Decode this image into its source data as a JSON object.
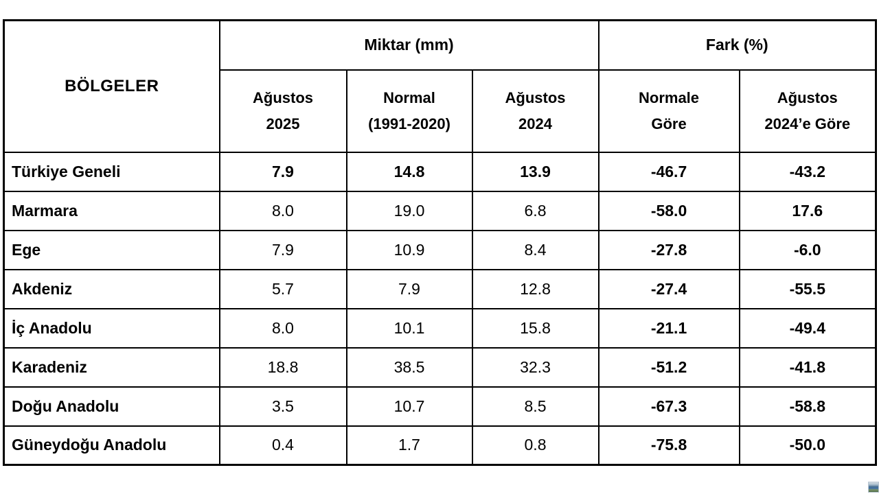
{
  "table": {
    "region_header": "BÖLGELER",
    "group_headers": [
      {
        "label": "Miktar (mm)"
      },
      {
        "label": "Fark (%)"
      }
    ],
    "sub_headers": [
      "Ağustos\n2025",
      "Normal\n(1991-2020)",
      "Ağustos\n2024",
      "Normale\nGöre",
      "Ağustos\n2024’e Göre"
    ],
    "rows": [
      {
        "region": "Türkiye Geneli",
        "values": [
          "7.9",
          "14.8",
          "13.9",
          "-46.7",
          "-43.2"
        ],
        "emphasis": true
      },
      {
        "region": "Marmara",
        "values": [
          "8.0",
          "19.0",
          "6.8",
          "-58.0",
          "17.6"
        ],
        "emphasis": false
      },
      {
        "region": "Ege",
        "values": [
          "7.9",
          "10.9",
          "8.4",
          "-27.8",
          "-6.0"
        ],
        "emphasis": false
      },
      {
        "region": "Akdeniz",
        "values": [
          "5.7",
          "7.9",
          "12.8",
          "-27.4",
          "-55.5"
        ],
        "emphasis": false
      },
      {
        "region": "İç Anadolu",
        "values": [
          "8.0",
          "10.1",
          "15.8",
          "-21.1",
          "-49.4"
        ],
        "emphasis": false
      },
      {
        "region": "Karadeniz",
        "values": [
          "18.8",
          "38.5",
          "32.3",
          "-51.2",
          "-41.8"
        ],
        "emphasis": false
      },
      {
        "region": "Doğu Anadolu",
        "values": [
          "3.5",
          "10.7",
          "8.5",
          "-67.3",
          "-58.8"
        ],
        "emphasis": false
      },
      {
        "region": "Güneydoğu Anadolu",
        "values": [
          "0.4",
          "1.7",
          "0.8",
          "-75.8",
          "-50.0"
        ],
        "emphasis": false
      }
    ]
  },
  "colors": {
    "border": "#000000",
    "background": "#ffffff",
    "text": "#000000"
  },
  "corner_icon": {
    "name": "thumbnail-image"
  }
}
